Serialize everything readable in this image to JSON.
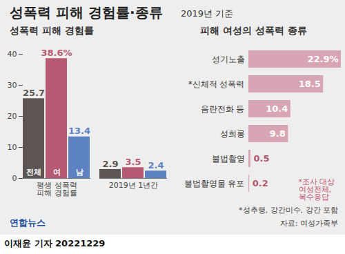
{
  "title": "성폭력 피해 경험률·종류",
  "subtitle": "2019년 기준",
  "logo": "연합뉴스",
  "source": "자료: 여성가족부",
  "byline": "이재윤 기자 20221229",
  "chart_data": [
    {
      "type": "bar",
      "title": "성폭력 피해 경험률",
      "categories": [
        "평생 성폭력\n피해 경험률",
        "2019년 1년간"
      ],
      "series": [
        {
          "name": "전체",
          "color": "#5d5553",
          "values": [
            25.7,
            2.9
          ]
        },
        {
          "name": "여",
          "color": "#b65a73",
          "values": [
            38.6,
            3.5
          ],
          "value_labels": [
            "38.6%",
            "3.5"
          ]
        },
        {
          "name": "남",
          "color": "#5d82c2",
          "values": [
            13.4,
            2.4
          ]
        }
      ],
      "ylim": [
        0,
        40
      ],
      "yticks": [
        0,
        10,
        20,
        30,
        40
      ],
      "grid": false,
      "data_labels": true
    },
    {
      "type": "bar",
      "title": "피해 여성의 성폭력 종류",
      "orientation": "horizontal",
      "categories": [
        "성기노출",
        "*신체적 성폭력",
        "음란전화 등",
        "성희롱",
        "불법촬영",
        "불법촬영물 유포"
      ],
      "values": [
        22.9,
        18.5,
        10.4,
        9.8,
        0.5,
        0.2
      ],
      "value_labels": [
        "22.9%",
        "18.5",
        "10.4",
        "9.8",
        "0.5",
        "0.2"
      ],
      "color": "#d8a5b4",
      "xlim": [
        0,
        22.9
      ],
      "tick_labels": "y",
      "data_labels": true,
      "annotations": [
        "*조사 대상\n여성전체,\n복수응답"
      ],
      "footnote": "*성추행, 강간미수, 강간 포함"
    }
  ]
}
